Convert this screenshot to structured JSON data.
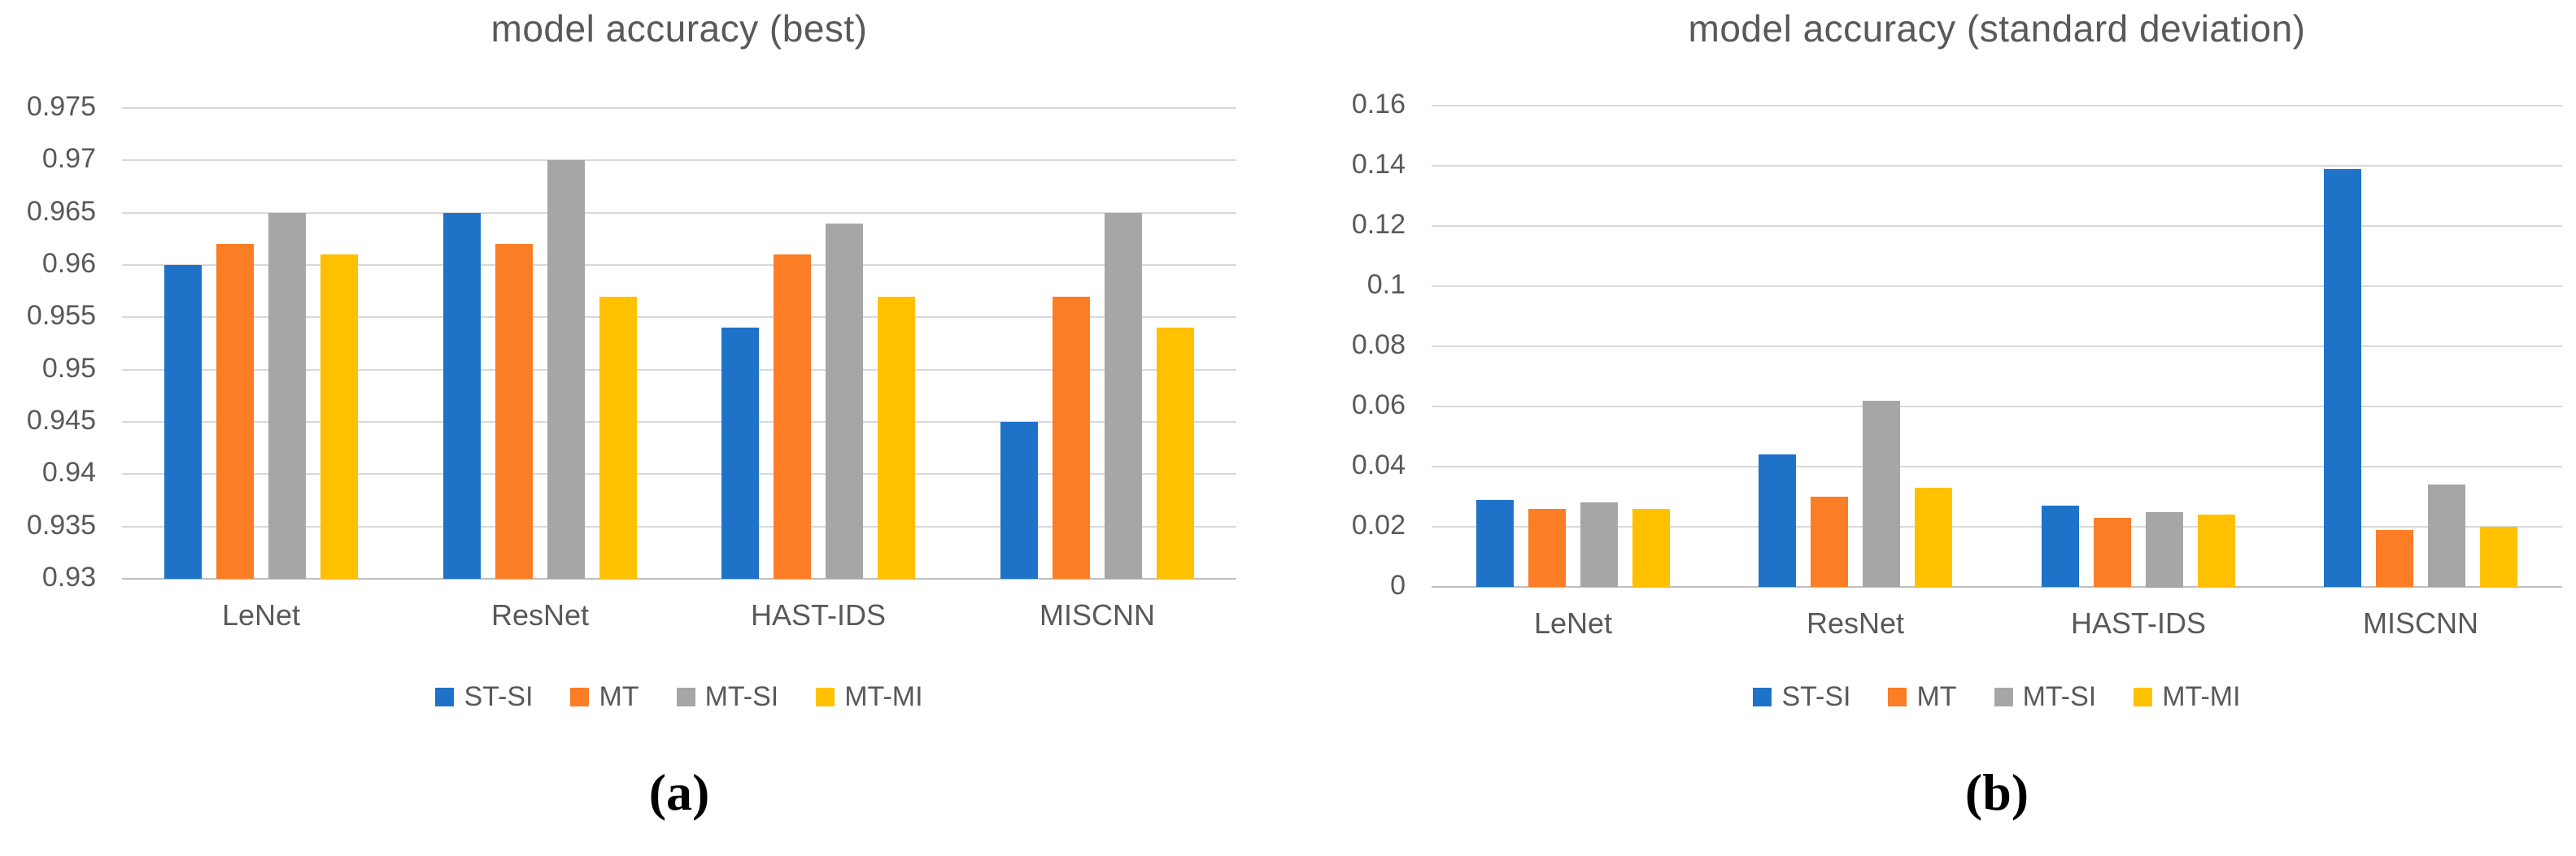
{
  "figure": {
    "colors": {
      "series_blue": "#1e73c8",
      "series_orange": "#fb7d26",
      "series_gray": "#a6a6a6",
      "series_yellow": "#ffc000",
      "text_gray": "#595959",
      "gridline_gray": "#d9d9d9"
    }
  },
  "chart_data": [
    {
      "type": "bar",
      "title": "model accuracy (best)",
      "caption": "(a)",
      "categories": [
        "LeNet",
        "ResNet",
        "HAST-IDS",
        "MISCNN"
      ],
      "series": [
        {
          "name": "ST-SI",
          "color": "#1e73c8",
          "values": [
            0.96,
            0.965,
            0.954,
            0.945
          ]
        },
        {
          "name": "MT",
          "color": "#fb7d26",
          "values": [
            0.962,
            0.962,
            0.961,
            0.957
          ]
        },
        {
          "name": "MT-SI",
          "color": "#a6a6a6",
          "values": [
            0.965,
            0.97,
            0.964,
            0.965
          ]
        },
        {
          "name": "MT-MI",
          "color": "#ffc000",
          "values": [
            0.961,
            0.957,
            0.957,
            0.954
          ]
        }
      ],
      "xlabel": "",
      "ylabel": "",
      "ylim": [
        0.93,
        0.975
      ],
      "ytick_labels": [
        "0.93",
        "0.935",
        "0.94",
        "0.945",
        "0.95",
        "0.955",
        "0.96",
        "0.965",
        "0.97",
        "0.975"
      ],
      "grid": true,
      "legend_position": "bottom"
    },
    {
      "type": "bar",
      "title": "model accuracy (standard deviation)",
      "caption": "(b)",
      "categories": [
        "LeNet",
        "ResNet",
        "HAST-IDS",
        "MISCNN"
      ],
      "series": [
        {
          "name": "ST-SI",
          "color": "#1e73c8",
          "values": [
            0.029,
            0.044,
            0.027,
            0.139
          ]
        },
        {
          "name": "MT",
          "color": "#fb7d26",
          "values": [
            0.026,
            0.03,
            0.023,
            0.019
          ]
        },
        {
          "name": "MT-SI",
          "color": "#a6a6a6",
          "values": [
            0.028,
            0.062,
            0.025,
            0.034
          ]
        },
        {
          "name": "MT-MI",
          "color": "#ffc000",
          "values": [
            0.026,
            0.033,
            0.024,
            0.02
          ]
        }
      ],
      "xlabel": "",
      "ylabel": "",
      "ylim": [
        0,
        0.16
      ],
      "ytick_labels": [
        "0",
        "0.02",
        "0.04",
        "0.06",
        "0.08",
        "0.1",
        "0.12",
        "0.14",
        "0.16"
      ],
      "grid": true,
      "legend_position": "bottom"
    }
  ]
}
